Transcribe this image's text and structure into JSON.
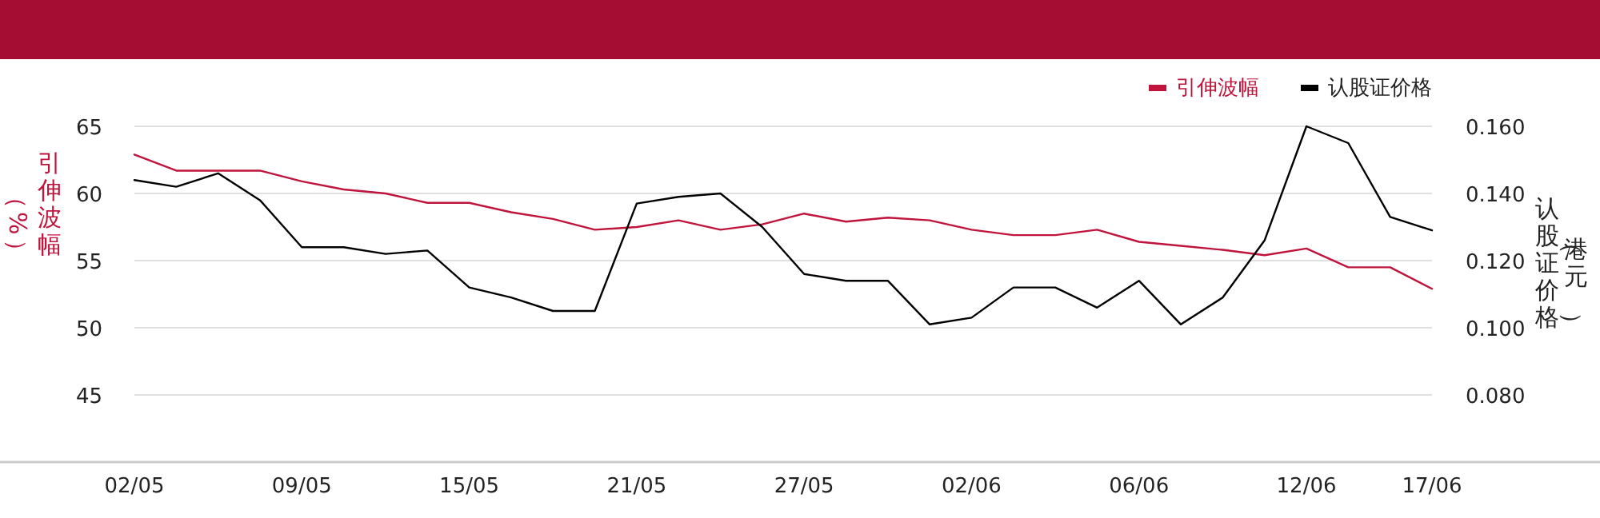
{
  "chart_data": {
    "type": "line",
    "categories": [
      "02/05",
      null,
      null,
      null,
      "09/05",
      null,
      null,
      null,
      "15/05",
      null,
      null,
      null,
      "21/05",
      null,
      null,
      null,
      "27/05",
      null,
      null,
      null,
      "02/06",
      null,
      null,
      null,
      "06/06",
      null,
      null,
      null,
      "12/06",
      null,
      null,
      "17/06"
    ],
    "series": [
      {
        "name": "引伸波幅",
        "color": "#c0143c",
        "values": [
          62.9,
          61.7,
          61.7,
          61.7,
          60.9,
          60.3,
          60.0,
          59.3,
          59.3,
          58.6,
          58.1,
          57.3,
          57.5,
          58.0,
          57.3,
          57.7,
          58.5,
          57.9,
          58.2,
          58.0,
          57.3,
          56.9,
          56.9,
          57.3,
          56.4,
          56.1,
          55.8,
          55.4,
          55.9,
          54.5,
          54.5,
          52.9
        ]
      },
      {
        "name": "认股证价格",
        "color": "#000000",
        "axis": "y2",
        "values": [
          0.144,
          0.142,
          0.146,
          0.138,
          0.124,
          0.124,
          0.122,
          0.123,
          0.112,
          0.109,
          0.105,
          0.105,
          0.137,
          0.139,
          0.14,
          0.13,
          0.116,
          0.114,
          0.114,
          0.101,
          0.103,
          0.112,
          0.112,
          0.106,
          0.114,
          0.101,
          0.109,
          0.126,
          0.16,
          0.155,
          0.133,
          0.129
        ]
      }
    ],
    "ylabel": "引伸波幅（%）",
    "y2label": "认股证价格（港元）",
    "ylim": [
      40,
      65
    ],
    "yticks": [
      45,
      50,
      55,
      60,
      65
    ],
    "y2lim": [
      0.06,
      0.16
    ],
    "y2ticks": [
      {
        "value": 0.08,
        "label": "0.080"
      },
      {
        "value": 0.1,
        "label": "0.100"
      },
      {
        "value": 0.12,
        "label": "0.120"
      },
      {
        "value": 0.14,
        "label": "0.140"
      },
      {
        "value": 0.16,
        "label": "0.160"
      }
    ],
    "grid": "y",
    "legend": "top right",
    "marker": "none",
    "line_style": "solid"
  }
}
